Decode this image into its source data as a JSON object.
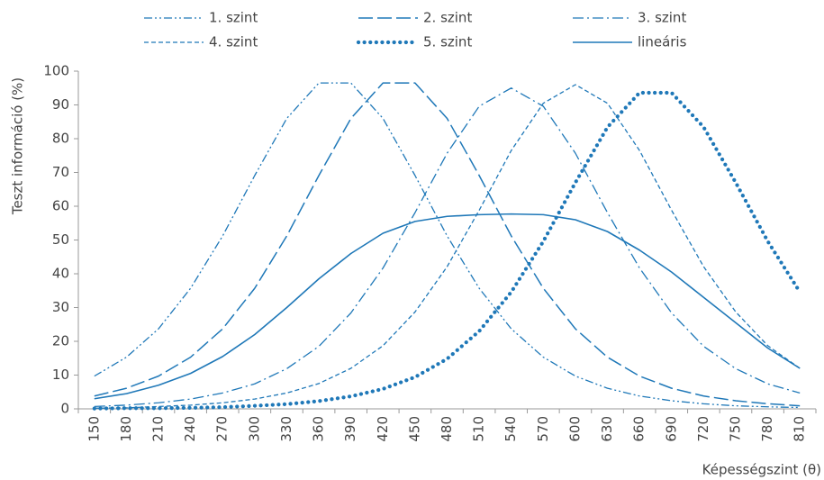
{
  "chart_data": {
    "type": "line",
    "y_label": "Teszt információ (%)",
    "x_label": "Képességszint (θ)",
    "categories": [
      "150",
      "180",
      "210",
      "240",
      "270",
      "300",
      "330",
      "360",
      "390",
      "420",
      "450",
      "480",
      "510",
      "540",
      "570",
      "600",
      "630",
      "660",
      "690",
      "720",
      "750",
      "780",
      "810"
    ],
    "series": [
      {
        "name": "1. szint",
        "color": "#1f78b8",
        "values": [
          9.7,
          15.3,
          23.7,
          35.7,
          51.2,
          69.1,
          86.0,
          96.5,
          96.5,
          86.0,
          69.1,
          51.2,
          35.7,
          23.7,
          15.3,
          9.7,
          6.1,
          3.8,
          2.4,
          1.5,
          0.9,
          0.6,
          0.4
        ]
      },
      {
        "name": "2. szint",
        "color": "#1f78b8",
        "values": [
          3.8,
          6.1,
          9.7,
          15.3,
          23.7,
          35.7,
          51.2,
          69.1,
          86.0,
          96.5,
          96.5,
          86.0,
          69.1,
          51.2,
          35.7,
          23.7,
          15.3,
          9.7,
          6.1,
          3.8,
          2.4,
          1.5,
          0.9
        ]
      },
      {
        "name": "3. szint",
        "color": "#1f78b8",
        "values": [
          0.7,
          1.1,
          1.8,
          2.9,
          4.7,
          7.4,
          11.9,
          18.5,
          28.4,
          41.7,
          58.1,
          75.7,
          89.6,
          95,
          89.6,
          75.7,
          58.1,
          41.7,
          28.4,
          18.5,
          11.9,
          7.4,
          4.7
        ]
      },
      {
        "name": "4. szint",
        "color": "#1f78b8",
        "values": [
          0.2,
          0.3,
          0.7,
          1.1,
          1.8,
          2.9,
          4.7,
          7.5,
          12.0,
          18.7,
          28.7,
          42.1,
          58.8,
          76.5,
          90.5,
          96,
          90.5,
          76.5,
          58.8,
          42.1,
          28.7,
          18.7,
          12.0
        ]
      },
      {
        "name": "5. szint",
        "color": "#1f78b8",
        "values": [
          0.1,
          0.2,
          0.2,
          0.3,
          0.5,
          0.9,
          1.4,
          2.3,
          3.7,
          5.9,
          9.4,
          14.8,
          23.0,
          34.6,
          49.6,
          67.0,
          83.4,
          93.6,
          93.6,
          83.4,
          67.0,
          49.6,
          34.6
        ]
      },
      {
        "name": "lineáris",
        "color": "#1f78b8",
        "values": [
          3,
          4.5,
          7,
          10.5,
          15.5,
          22,
          30,
          38.5,
          46,
          52,
          55.5,
          57,
          57.5,
          57.7,
          57.5,
          56,
          52.5,
          47,
          40.5,
          33,
          25.5,
          18,
          12
        ]
      }
    ],
    "ylim": [
      0,
      100
    ],
    "yticks": [
      0,
      10,
      20,
      30,
      40,
      50,
      60,
      70,
      80,
      90,
      100
    ],
    "grid": false
  }
}
